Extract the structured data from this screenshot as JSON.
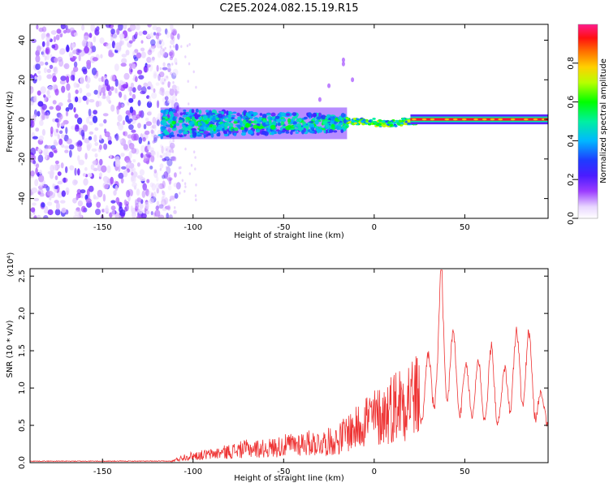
{
  "title": "C2E5.2024.082.15.19.R15",
  "chart_data": [
    {
      "type": "heatmap",
      "title": "C2E5.2024.082.15.19.R15",
      "xlabel": "Height of straight line (km)",
      "ylabel": "Frequency (Hz)",
      "xlim": [
        -190,
        96
      ],
      "ylim": [
        -50,
        48
      ],
      "xticks": [
        -150,
        -100,
        -50,
        0,
        50
      ],
      "yticks": [
        -40,
        -20,
        0,
        20,
        40
      ],
      "colorbar": {
        "label": "Normalized spectral amplitude",
        "ticks": [
          "0.0",
          "0.2",
          "0.4",
          "0.6",
          "0.8"
        ],
        "range": [
          0,
          1
        ]
      },
      "regions": [
        {
          "name": "broadband noise",
          "x": [
            -190,
            -118
          ],
          "f": [
            -50,
            48
          ],
          "amplitude": [
            0.05,
            0.25
          ]
        },
        {
          "name": "signal band",
          "x": [
            -118,
            -15
          ],
          "f": [
            -10,
            6
          ],
          "amplitude": [
            0.15,
            0.55
          ]
        },
        {
          "name": "narrow line",
          "x": [
            -15,
            96
          ],
          "f": [
            -1,
            1
          ],
          "amplitude": [
            0.6,
            1.0
          ]
        }
      ]
    },
    {
      "type": "line",
      "xlabel": "Height of straight line (km)",
      "ylabel": "SNR (10 * v/v)",
      "y_multiplier": "(x10⁴)",
      "xlim": [
        -190,
        96
      ],
      "ylim": [
        0,
        2.6
      ],
      "xticks": [
        -150,
        -100,
        -50,
        0,
        50
      ],
      "yticks": [
        "0.0",
        "0.5",
        "1.0",
        "1.5",
        "2.0",
        "2.5"
      ],
      "series": [
        {
          "name": "SNR",
          "color": "#ee3333",
          "x": [
            -190,
            -150,
            -112,
            -105,
            -100,
            -90,
            -80,
            -70,
            -60,
            -50,
            -40,
            -30,
            -20,
            -15,
            -10,
            -5,
            0,
            5,
            10,
            15,
            20,
            25,
            30,
            35,
            37,
            40,
            45,
            50,
            55,
            60,
            65,
            70,
            75,
            80,
            85,
            90,
            93,
            96
          ],
          "values": [
            0.02,
            0.02,
            0.02,
            0.1,
            0.12,
            0.15,
            0.2,
            0.25,
            0.25,
            0.3,
            0.35,
            0.35,
            0.4,
            0.55,
            0.6,
            0.8,
            0.8,
            0.85,
            1.0,
            1.1,
            1.2,
            1.15,
            1.4,
            1.8,
            2.55,
            1.8,
            1.6,
            1.2,
            1.4,
            1.2,
            1.5,
            1.0,
            1.6,
            1.7,
            1.7,
            1.2,
            0.8,
            1.1
          ]
        }
      ]
    }
  ]
}
